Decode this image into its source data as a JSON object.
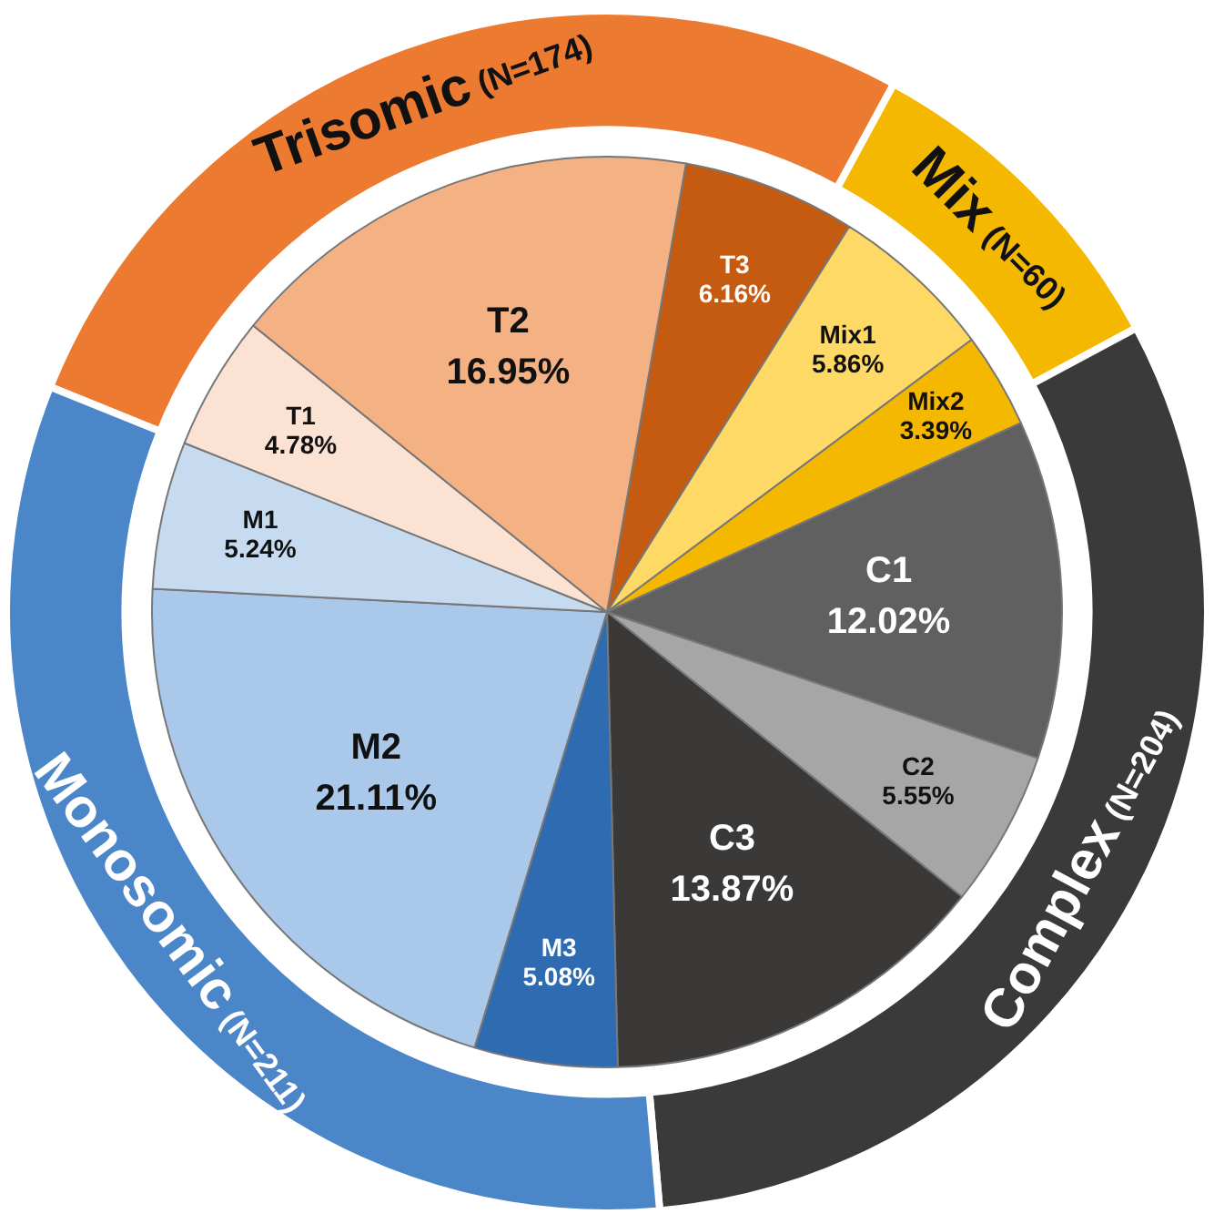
{
  "chart_data": [
    {
      "type": "pie",
      "categories": [
        "T3",
        "Mix1",
        "Mix2",
        "C1",
        "C2",
        "C3",
        "M3",
        "M2",
        "M1",
        "T1",
        "T2"
      ],
      "values": [
        6.16,
        5.86,
        3.39,
        12.02,
        5.55,
        13.87,
        5.08,
        21.11,
        5.24,
        4.78,
        16.95
      ],
      "colors": [
        "#c55a11",
        "#ffd966",
        "#f5b800",
        "#606060",
        "#a6a6a6",
        "#3b3838",
        "#2e6bb0",
        "#a9c8ea",
        "#c6dbef",
        "#fbe2d3",
        "#f4b183"
      ],
      "value_labels": [
        "6.16%",
        "5.86%",
        "3.39%",
        "12.02%",
        "5.55%",
        "13.87%",
        "5.08%",
        "21.11%",
        "5.24%",
        "4.78%",
        "16.95%"
      ]
    },
    {
      "type": "donut",
      "categories": [
        "Trisomic",
        "Mix",
        "Complex",
        "Monosomic"
      ],
      "values": [
        174,
        60,
        204,
        211
      ],
      "colors": [
        "#ec7a30",
        "#f5b800",
        "#3a3a3a",
        "#4a86c8"
      ],
      "value_labels": [
        "(N=174)",
        "(N=60)",
        "(N=204)",
        "(N=211)"
      ]
    }
  ]
}
